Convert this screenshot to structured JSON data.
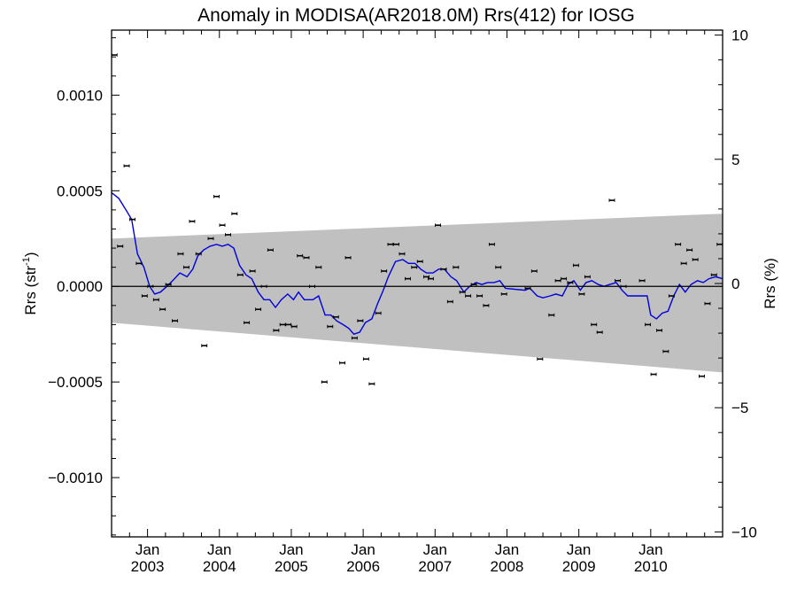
{
  "chart_data": {
    "type": "scatter",
    "title": "Anomaly in MODISA(AR2018.0M) Rrs(412) for IOSG",
    "ylabel_left": "Rrs (str",
    "ylabel_left_sup": "-1",
    "ylabel_left_close": ")",
    "ylabel_right": "Rrs (%)",
    "xlim": [
      2002.5,
      2011.0
    ],
    "ylim_left": [
      -0.00131,
      0.00134
    ],
    "ylim_right": [
      -10.2,
      10.2
    ],
    "yticks_left": [
      {
        "value": 0.001,
        "label": "0.0010"
      },
      {
        "value": 0.0005,
        "label": "0.0005"
      },
      {
        "value": 0.0,
        "label": "0.0000"
      },
      {
        "value": -0.0005,
        "label": "−0.0005"
      },
      {
        "value": -0.001,
        "label": "−0.0010"
      }
    ],
    "yticks_right": [
      {
        "value": 10,
        "label": "10"
      },
      {
        "value": 5,
        "label": "5"
      },
      {
        "value": 0,
        "label": "0"
      },
      {
        "value": -5,
        "label": "−5"
      },
      {
        "value": -10,
        "label": "−10"
      }
    ],
    "xticks": [
      {
        "value": 2003.0,
        "top": "Jan",
        "bottom": "2003"
      },
      {
        "value": 2004.0,
        "top": "Jan",
        "bottom": "2004"
      },
      {
        "value": 2005.0,
        "top": "Jan",
        "bottom": "2005"
      },
      {
        "value": 2006.0,
        "top": "Jan",
        "bottom": "2006"
      },
      {
        "value": 2007.0,
        "top": "Jan",
        "bottom": "2007"
      },
      {
        "value": 2008.0,
        "top": "Jan",
        "bottom": "2008"
      },
      {
        "value": 2009.0,
        "top": "Jan",
        "bottom": "2009"
      },
      {
        "value": 2010.0,
        "top": "Jan",
        "bottom": "2010"
      }
    ],
    "band": {
      "x": [
        2002.5,
        2011.0
      ],
      "upper": [
        0.00025,
        0.00038
      ],
      "lower": [
        -0.00019,
        -0.00045
      ]
    },
    "zero_line": 0.0,
    "colors": {
      "band": "#c0c0c0",
      "running_mean": "#0000dd",
      "points": "#000000"
    },
    "points": [
      {
        "x": 2002.54,
        "y": 0.00121
      },
      {
        "x": 2002.62,
        "y": 0.00021
      },
      {
        "x": 2002.71,
        "y": 0.00063
      },
      {
        "x": 2002.79,
        "y": 0.00035
      },
      {
        "x": 2002.88,
        "y": 0.00012
      },
      {
        "x": 2002.96,
        "y": -5e-05
      },
      {
        "x": 2003.04,
        "y": 0.0
      },
      {
        "x": 2003.12,
        "y": -7e-05
      },
      {
        "x": 2003.21,
        "y": -0.00012
      },
      {
        "x": 2003.29,
        "y": 1e-05
      },
      {
        "x": 2003.38,
        "y": -0.00018
      },
      {
        "x": 2003.46,
        "y": 0.00017
      },
      {
        "x": 2003.54,
        "y": 0.0001
      },
      {
        "x": 2003.62,
        "y": 0.00034
      },
      {
        "x": 2003.71,
        "y": 0.00017
      },
      {
        "x": 2003.79,
        "y": -0.00031
      },
      {
        "x": 2003.88,
        "y": 0.00025
      },
      {
        "x": 2003.96,
        "y": 0.00047
      },
      {
        "x": 2004.04,
        "y": 0.00032
      },
      {
        "x": 2004.12,
        "y": 0.00027
      },
      {
        "x": 2004.21,
        "y": 0.00038
      },
      {
        "x": 2004.29,
        "y": 6e-05
      },
      {
        "x": 2004.38,
        "y": -0.00019
      },
      {
        "x": 2004.46,
        "y": 8e-05
      },
      {
        "x": 2004.54,
        "y": -0.00012
      },
      {
        "x": 2004.62,
        "y": 0.0
      },
      {
        "x": 2004.71,
        "y": 0.00019
      },
      {
        "x": 2004.79,
        "y": -0.00023
      },
      {
        "x": 2004.88,
        "y": -0.0002
      },
      {
        "x": 2004.96,
        "y": -0.0002
      },
      {
        "x": 2005.04,
        "y": -0.00021
      },
      {
        "x": 2005.12,
        "y": 0.00016
      },
      {
        "x": 2005.21,
        "y": 0.00015
      },
      {
        "x": 2005.29,
        "y": 0.0
      },
      {
        "x": 2005.38,
        "y": 0.0001
      },
      {
        "x": 2005.46,
        "y": -0.0005
      },
      {
        "x": 2005.54,
        "y": -0.00021
      },
      {
        "x": 2005.62,
        "y": -0.00016
      },
      {
        "x": 2005.71,
        "y": -0.0004
      },
      {
        "x": 2005.79,
        "y": 0.00015
      },
      {
        "x": 2005.88,
        "y": -0.00027
      },
      {
        "x": 2005.96,
        "y": -0.00018
      },
      {
        "x": 2006.04,
        "y": -0.00038
      },
      {
        "x": 2006.12,
        "y": -0.00051
      },
      {
        "x": 2006.21,
        "y": -0.00014
      },
      {
        "x": 2006.29,
        "y": 8e-05
      },
      {
        "x": 2006.38,
        "y": 0.00022
      },
      {
        "x": 2006.46,
        "y": 0.00022
      },
      {
        "x": 2006.54,
        "y": 0.00017
      },
      {
        "x": 2006.62,
        "y": 4e-05
      },
      {
        "x": 2006.71,
        "y": 0.0001
      },
      {
        "x": 2006.79,
        "y": 0.00013
      },
      {
        "x": 2006.88,
        "y": 5e-05
      },
      {
        "x": 2006.94,
        "y": 4e-05
      },
      {
        "x": 2007.04,
        "y": 0.00032
      },
      {
        "x": 2007.12,
        "y": 9e-05
      },
      {
        "x": 2007.21,
        "y": -8e-05
      },
      {
        "x": 2007.29,
        "y": 0.0001
      },
      {
        "x": 2007.38,
        "y": -3e-05
      },
      {
        "x": 2007.46,
        "y": -5e-05
      },
      {
        "x": 2007.54,
        "y": 1e-05
      },
      {
        "x": 2007.62,
        "y": -5e-05
      },
      {
        "x": 2007.71,
        "y": -0.0001
      },
      {
        "x": 2007.79,
        "y": 0.00022
      },
      {
        "x": 2007.88,
        "y": 0.0001
      },
      {
        "x": 2007.96,
        "y": -4e-05
      },
      {
        "x": 2008.29,
        "y": -1e-05
      },
      {
        "x": 2008.38,
        "y": 8e-05
      },
      {
        "x": 2008.46,
        "y": -0.00038
      },
      {
        "x": 2008.62,
        "y": -0.00015
      },
      {
        "x": 2008.71,
        "y": 3e-05
      },
      {
        "x": 2008.79,
        "y": 4e-05
      },
      {
        "x": 2008.88,
        "y": 2e-05
      },
      {
        "x": 2008.96,
        "y": 0.00011
      },
      {
        "x": 2009.04,
        "y": -4e-05
      },
      {
        "x": 2009.12,
        "y": 5e-05
      },
      {
        "x": 2009.21,
        "y": -0.0002
      },
      {
        "x": 2009.29,
        "y": -0.00024
      },
      {
        "x": 2009.46,
        "y": 0.00045
      },
      {
        "x": 2009.54,
        "y": 3e-05
      },
      {
        "x": 2009.62,
        "y": 0.0
      },
      {
        "x": 2009.88,
        "y": 3e-05
      },
      {
        "x": 2009.96,
        "y": -0.0002
      },
      {
        "x": 2010.04,
        "y": -0.00046
      },
      {
        "x": 2010.12,
        "y": -0.00023
      },
      {
        "x": 2010.21,
        "y": -0.00034
      },
      {
        "x": 2010.29,
        "y": -5e-05
      },
      {
        "x": 2010.38,
        "y": 0.00022
      },
      {
        "x": 2010.46,
        "y": 0.00012
      },
      {
        "x": 2010.54,
        "y": 0.00019
      },
      {
        "x": 2010.62,
        "y": 0.00014
      },
      {
        "x": 2010.71,
        "y": -0.00047
      },
      {
        "x": 2010.79,
        "y": -9e-05
      },
      {
        "x": 2010.88,
        "y": 6e-05
      },
      {
        "x": 2010.96,
        "y": 0.00022
      }
    ],
    "running_mean": [
      [
        2002.5,
        0.00049
      ],
      [
        2002.6,
        0.00046
      ],
      [
        2002.7,
        0.0004
      ],
      [
        2002.78,
        0.00035
      ],
      [
        2002.86,
        0.00017
      ],
      [
        2002.95,
        0.0001
      ],
      [
        2003.03,
        0.0
      ],
      [
        2003.1,
        -4e-05
      ],
      [
        2003.18,
        -3e-05
      ],
      [
        2003.27,
        0.0
      ],
      [
        2003.35,
        3e-05
      ],
      [
        2003.45,
        7e-05
      ],
      [
        2003.55,
        5e-05
      ],
      [
        2003.63,
        9e-05
      ],
      [
        2003.7,
        0.00016
      ],
      [
        2003.78,
        0.00019
      ],
      [
        2003.87,
        0.00021
      ],
      [
        2003.96,
        0.00022
      ],
      [
        2004.04,
        0.00021
      ],
      [
        2004.12,
        0.00022
      ],
      [
        2004.2,
        0.0002
      ],
      [
        2004.28,
        0.00011
      ],
      [
        2004.37,
        6e-05
      ],
      [
        2004.45,
        4e-05
      ],
      [
        2004.54,
        -3e-05
      ],
      [
        2004.62,
        -7e-05
      ],
      [
        2004.7,
        -7e-05
      ],
      [
        2004.78,
        -0.00011
      ],
      [
        2004.86,
        -7e-05
      ],
      [
        2004.95,
        -4e-05
      ],
      [
        2005.03,
        -7e-05
      ],
      [
        2005.1,
        -3e-05
      ],
      [
        2005.18,
        -7e-05
      ],
      [
        2005.3,
        -7e-05
      ],
      [
        2005.38,
        -5e-05
      ],
      [
        2005.47,
        -0.00015
      ],
      [
        2005.55,
        -0.00015
      ],
      [
        2005.63,
        -0.00018
      ],
      [
        2005.72,
        -0.0002
      ],
      [
        2005.8,
        -0.00022
      ],
      [
        2005.87,
        -0.00025
      ],
      [
        2005.95,
        -0.00024
      ],
      [
        2006.03,
        -0.00019
      ],
      [
        2006.12,
        -0.00017
      ],
      [
        2006.2,
        -9e-05
      ],
      [
        2006.28,
        -2e-05
      ],
      [
        2006.35,
        5e-05
      ],
      [
        2006.45,
        0.00013
      ],
      [
        2006.55,
        0.00014
      ],
      [
        2006.63,
        0.00012
      ],
      [
        2006.72,
        0.00012
      ],
      [
        2006.8,
        9e-05
      ],
      [
        2006.88,
        7e-05
      ],
      [
        2006.97,
        7e-05
      ],
      [
        2007.05,
        9e-05
      ],
      [
        2007.13,
        9e-05
      ],
      [
        2007.22,
        5e-05
      ],
      [
        2007.3,
        3e-05
      ],
      [
        2007.4,
        -3e-05
      ],
      [
        2007.48,
        0.0
      ],
      [
        2007.57,
        2e-05
      ],
      [
        2007.65,
        1e-05
      ],
      [
        2007.73,
        2e-05
      ],
      [
        2007.82,
        2e-05
      ],
      [
        2007.9,
        3e-05
      ],
      [
        2007.98,
        -1e-05
      ],
      [
        2008.25,
        -2e-05
      ],
      [
        2008.32,
        -1e-05
      ],
      [
        2008.42,
        -5e-05
      ],
      [
        2008.5,
        -6e-05
      ],
      [
        2008.6,
        -5e-05
      ],
      [
        2008.68,
        -4e-05
      ],
      [
        2008.77,
        -5e-05
      ],
      [
        2008.85,
        1e-05
      ],
      [
        2008.93,
        3e-05
      ],
      [
        2009.02,
        -2e-05
      ],
      [
        2009.1,
        2e-05
      ],
      [
        2009.18,
        3e-05
      ],
      [
        2009.27,
        1e-05
      ],
      [
        2009.35,
        0.0
      ],
      [
        2009.43,
        1e-05
      ],
      [
        2009.52,
        2e-05
      ],
      [
        2009.6,
        -2e-05
      ],
      [
        2009.68,
        -5e-05
      ],
      [
        2009.95,
        -5e-05
      ],
      [
        2010.0,
        -0.00015
      ],
      [
        2010.08,
        -0.00017
      ],
      [
        2010.16,
        -0.00014
      ],
      [
        2010.24,
        -0.00013
      ],
      [
        2010.32,
        -5e-05
      ],
      [
        2010.4,
        1e-05
      ],
      [
        2010.48,
        -3e-05
      ],
      [
        2010.56,
        1e-05
      ],
      [
        2010.65,
        3e-05
      ],
      [
        2010.73,
        2e-05
      ],
      [
        2010.81,
        4e-05
      ],
      [
        2010.9,
        5e-05
      ],
      [
        2011.0,
        4e-05
      ]
    ]
  }
}
